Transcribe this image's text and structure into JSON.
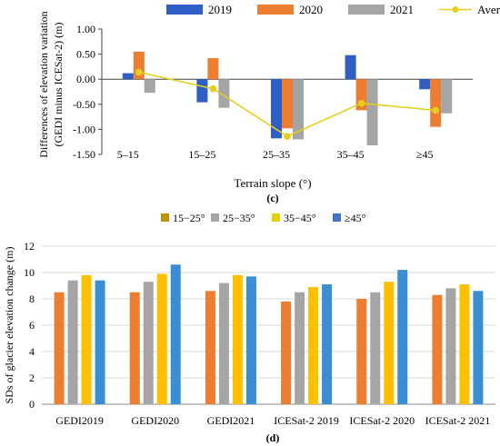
{
  "chart_data": [
    {
      "type": "bar",
      "title": "",
      "panel_label": "(c)",
      "xlabel": "Terrain slope (°)",
      "ylabel_lines": [
        "Differences of elevation variation",
        "(GEDI minus ICESat-2) (m)"
      ],
      "ylim": [
        -1.5,
        1.0
      ],
      "yticks": [
        "1.00",
        "0.50",
        "0.00",
        "-0.50",
        "-1.00",
        "-1.50"
      ],
      "ytick_values": [
        1.0,
        0.5,
        0.0,
        -0.5,
        -1.0,
        -1.5
      ],
      "categories": [
        "5–15",
        "15–25",
        "25–35",
        "35–45",
        "≥45"
      ],
      "series": [
        {
          "name": "2019",
          "color": "#2f5fc4",
          "values": [
            0.12,
            -0.46,
            -1.18,
            0.48,
            -0.2
          ]
        },
        {
          "name": "2020",
          "color": "#ed7d31",
          "values": [
            0.55,
            0.42,
            -0.98,
            -0.62,
            -0.95
          ]
        },
        {
          "name": "2021",
          "color": "#a5a5a5",
          "values": [
            -0.27,
            -0.57,
            -1.2,
            -1.32,
            -0.68
          ]
        }
      ],
      "line_series": {
        "name": "Average difference",
        "color": "#e6cf1c",
        "values": [
          0.14,
          -0.19,
          -1.14,
          -0.48,
          -0.62
        ]
      },
      "legend_position": "top"
    },
    {
      "type": "bar",
      "title": "",
      "panel_label": "(d)",
      "xlabel": "",
      "ylabel": "SDs of glacier elevation change (m)",
      "ylim": [
        0,
        12
      ],
      "yticks": [
        "12",
        "10",
        "8",
        "6",
        "4",
        "2",
        "0"
      ],
      "ytick_values": [
        12,
        10,
        8,
        6,
        4,
        2,
        0
      ],
      "categories": [
        "GEDI2019",
        "GEDI2020",
        "GEDI2021",
        "ICESat-2 2019",
        "ICESat-2 2020",
        "ICESat-2 2021"
      ],
      "series": [
        {
          "name": "15−25°",
          "color": "#ed7d31",
          "legend_color": "#bf9000",
          "values": [
            8.5,
            8.5,
            8.6,
            7.8,
            8.0,
            8.3
          ]
        },
        {
          "name": "25−35°",
          "color": "#a5a5a5",
          "legend_color": "#a5a5a5",
          "values": [
            9.4,
            9.3,
            9.2,
            8.5,
            8.5,
            8.8
          ]
        },
        {
          "name": "35−45°",
          "color": "#ffc000",
          "legend_color": "#e6d000",
          "values": [
            9.8,
            9.9,
            9.8,
            8.9,
            9.3,
            9.1
          ]
        },
        {
          "name": "≥45°",
          "color": "#3a8fd4",
          "legend_color": "#4472c4",
          "values": [
            9.4,
            10.6,
            9.7,
            9.1,
            10.2,
            8.6
          ]
        }
      ],
      "legend_position": "top"
    }
  ]
}
